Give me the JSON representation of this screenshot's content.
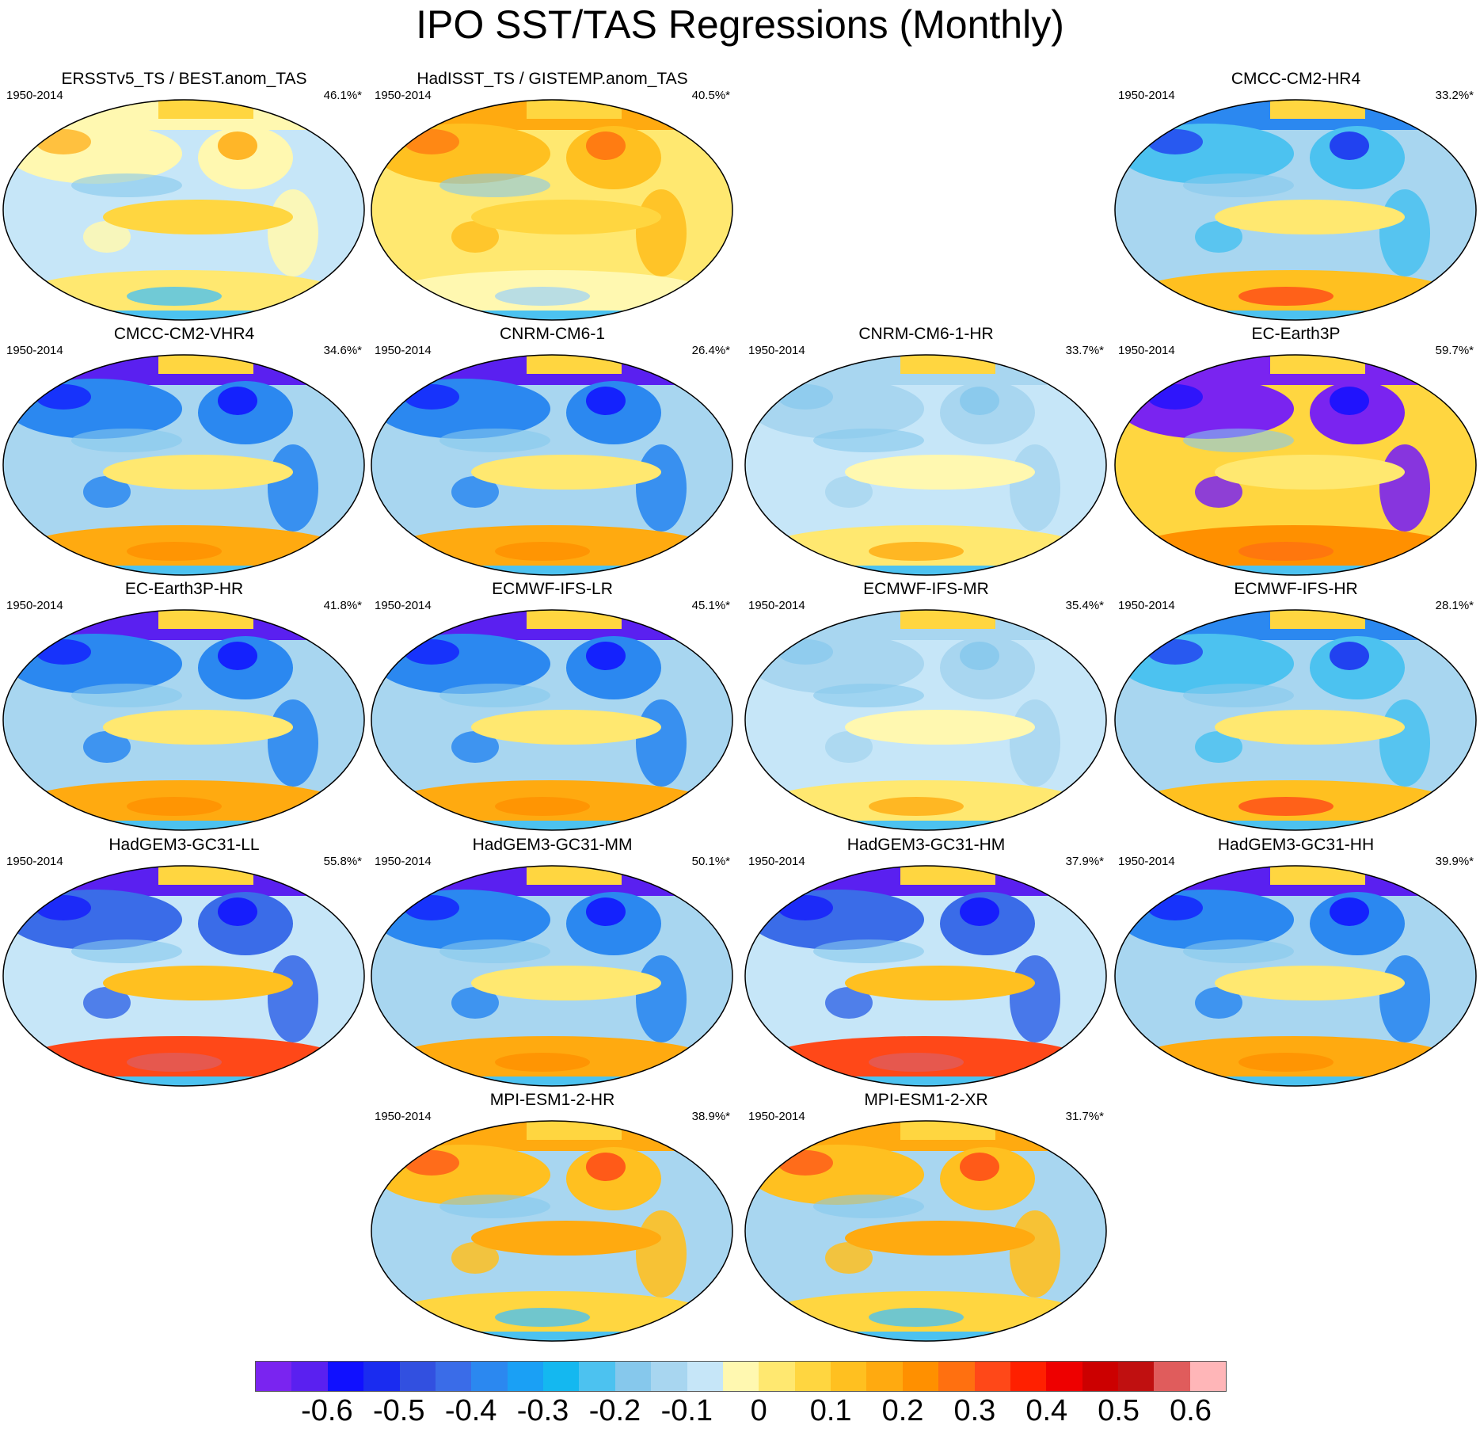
{
  "title": "IPO SST/TAS Regressions (Monthly)",
  "panels": [
    {
      "title": "ERSSTv5_TS / BEST.anom_TAS",
      "years": "1950-2014",
      "pct": "46.1%*",
      "pattern": "obs1"
    },
    {
      "title": "HadISST_TS / GISTEMP.anom_TAS",
      "years": "1950-2014",
      "pct": "40.5%*",
      "pattern": "obs2"
    },
    {
      "title": "CMCC-CM2-HR4",
      "years": "1950-2014",
      "pct": "33.2%*",
      "pattern": "cool"
    },
    {
      "title": "CMCC-CM2-VHR4",
      "years": "1950-2014",
      "pct": "34.6%*",
      "pattern": "cold_land"
    },
    {
      "title": "CNRM-CM6-1",
      "years": "1950-2014",
      "pct": "26.4%*",
      "pattern": "cold_land"
    },
    {
      "title": "CNRM-CM6-1-HR",
      "years": "1950-2014",
      "pct": "33.7%*",
      "pattern": "pale"
    },
    {
      "title": "EC-Earth3P",
      "years": "1950-2014",
      "pct": "59.7%*",
      "pattern": "strong"
    },
    {
      "title": "EC-Earth3P-HR",
      "years": "1950-2014",
      "pct": "41.8%*",
      "pattern": "cold_land"
    },
    {
      "title": "ECMWF-IFS-LR",
      "years": "1950-2014",
      "pct": "45.1%*",
      "pattern": "cold_land"
    },
    {
      "title": "ECMWF-IFS-MR",
      "years": "1950-2014",
      "pct": "35.4%*",
      "pattern": "pale"
    },
    {
      "title": "ECMWF-IFS-HR",
      "years": "1950-2014",
      "pct": "28.1%*",
      "pattern": "cool"
    },
    {
      "title": "HadGEM3-GC31-LL",
      "years": "1950-2014",
      "pct": "55.8%*",
      "pattern": "strong_south"
    },
    {
      "title": "HadGEM3-GC31-MM",
      "years": "1950-2014",
      "pct": "50.1%*",
      "pattern": "cold_land"
    },
    {
      "title": "HadGEM3-GC31-HM",
      "years": "1950-2014",
      "pct": "37.9%*",
      "pattern": "strong_south"
    },
    {
      "title": "HadGEM3-GC31-HH",
      "years": "1950-2014",
      "pct": "39.9%*",
      "pattern": "cold_land"
    },
    {
      "title": "MPI-ESM1-2-HR",
      "years": "1950-2014",
      "pct": "38.9%*",
      "pattern": "warm"
    },
    {
      "title": "MPI-ESM1-2-XR",
      "years": "1950-2014",
      "pct": "31.7%*",
      "pattern": "warm"
    }
  ],
  "colorbar": {
    "colors": [
      "#7a24f0",
      "#5a20f0",
      "#1010ff",
      "#1a2cf0",
      "#3250e0",
      "#3a6ce8",
      "#2b88f0",
      "#1aa0f5",
      "#14b8f0",
      "#4cc2f0",
      "#86c8ec",
      "#a8d6f0",
      "#c6e6f8",
      "#fff8b0",
      "#ffe870",
      "#ffd640",
      "#ffc020",
      "#ffaa10",
      "#ff9000",
      "#ff7010",
      "#ff4818",
      "#ff2000",
      "#ee0000",
      "#cc0000",
      "#c01010",
      "#e05c5c",
      "#ffb6b8"
    ],
    "labels": [
      "-0.6",
      "-0.5",
      "-0.4",
      "-0.3",
      "-0.2",
      "-0.1",
      "0",
      "0.1",
      "0.2",
      "0.3",
      "0.4",
      "0.5",
      "0.6"
    ]
  }
}
